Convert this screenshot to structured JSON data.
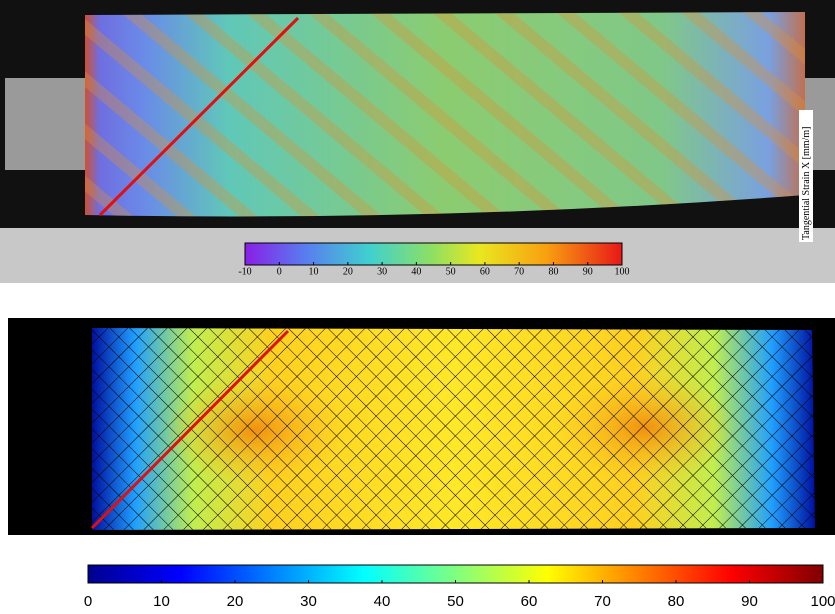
{
  "top": {
    "axis_label": "Tangential Strain X [mm/m]",
    "colorbar": {
      "range": [
        -10,
        100
      ],
      "ticks": [
        -10,
        0,
        10,
        20,
        30,
        40,
        50,
        60,
        70,
        80,
        90,
        100
      ]
    }
  },
  "bottom": {
    "colorbar": {
      "range": [
        0,
        100
      ],
      "ticks": [
        0,
        10,
        20,
        30,
        40,
        50,
        60,
        70,
        80,
        90,
        100
      ]
    }
  }
}
